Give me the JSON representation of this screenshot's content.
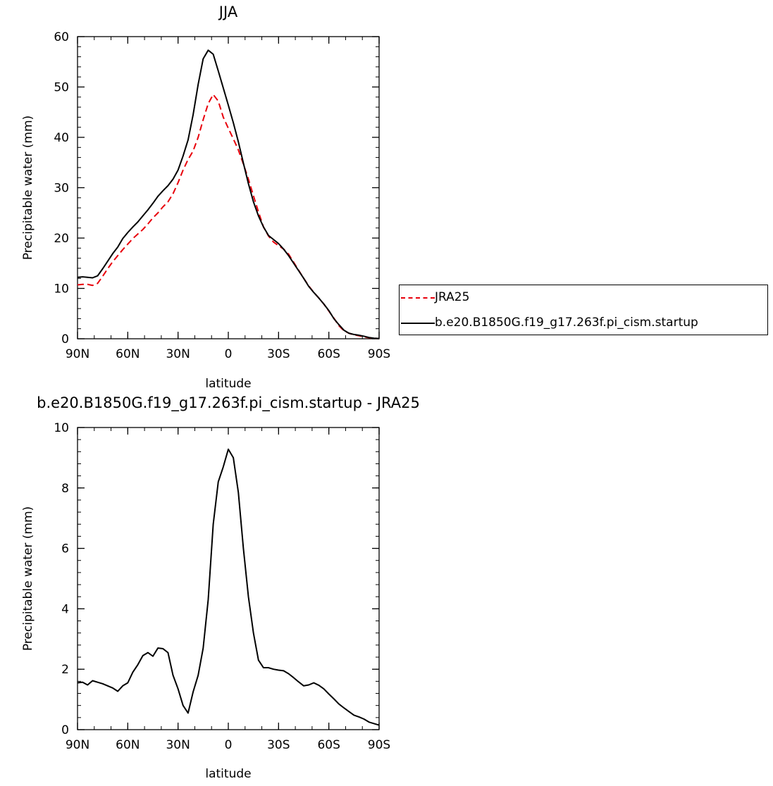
{
  "chart_data": [
    {
      "type": "line",
      "title": "JJA",
      "xlabel": "latitude",
      "ylabel": "Precipitable water (mm)",
      "xlim": [
        90,
        -90
      ],
      "ylim": [
        0,
        60
      ],
      "xticks": [
        90,
        60,
        30,
        0,
        -30,
        -60,
        -90
      ],
      "xtick_labels": [
        "90N",
        "60N",
        "30N",
        "0",
        "30S",
        "60S",
        "90S"
      ],
      "yticks": [
        0,
        10,
        20,
        30,
        40,
        50,
        60
      ],
      "ytick_labels": [
        "0",
        "10",
        "20",
        "30",
        "40",
        "50",
        "60"
      ],
      "legend": "right",
      "series": [
        {
          "name": "JRA25",
          "color": "#e8000b",
          "style": "dashed",
          "x": [
            90,
            87,
            84,
            81,
            78,
            75,
            72,
            69,
            66,
            63,
            60,
            57,
            54,
            51,
            48,
            45,
            42,
            39,
            36,
            33,
            30,
            27,
            24,
            21,
            18,
            15,
            12,
            9,
            6,
            3,
            0,
            -3,
            -6,
            -9,
            -12,
            -15,
            -18,
            -21,
            -24,
            -27,
            -30,
            -33,
            -36,
            -39,
            -42,
            -45,
            -48,
            -51,
            -54,
            -57,
            -60,
            -63,
            -66,
            -69,
            -72,
            -75,
            -78,
            -81,
            -84,
            -87,
            -90
          ],
          "y": [
            10.7,
            10.8,
            10.8,
            10.6,
            11,
            12.4,
            13.9,
            15.3,
            16.5,
            17.7,
            18.8,
            19.9,
            20.8,
            21.7,
            22.8,
            24,
            25,
            26.2,
            27.2,
            28.8,
            31,
            33.5,
            35.6,
            37.3,
            40,
            43.5,
            46.7,
            48.5,
            47.2,
            44,
            41.8,
            39.7,
            37.5,
            34.7,
            31.7,
            28.4,
            25.2,
            22.2,
            20.4,
            19.2,
            18.5,
            17.8,
            16.8,
            15.2,
            13.6,
            12,
            10.5,
            9.2,
            8.1,
            6.9,
            5.5,
            4.1,
            2.6,
            1.6,
            1.1,
            0.8,
            0.6,
            0.4,
            0.2,
            0.1,
            0.05
          ]
        },
        {
          "name": "b.e20.B1850G.f19_g17.263f.pi_cism.startup",
          "color": "#000000",
          "style": "solid",
          "x": [
            90,
            87,
            84,
            81,
            78,
            75,
            72,
            69,
            66,
            63,
            60,
            57,
            54,
            51,
            48,
            45,
            42,
            39,
            36,
            33,
            30,
            27,
            24,
            21,
            18,
            15,
            12,
            9,
            6,
            3,
            0,
            -3,
            -6,
            -9,
            -12,
            -15,
            -18,
            -21,
            -24,
            -27,
            -30,
            -33,
            -36,
            -39,
            -42,
            -45,
            -48,
            -51,
            -54,
            -57,
            -60,
            -63,
            -66,
            -69,
            -72,
            -75,
            -78,
            -81,
            -84,
            -87,
            -90
          ],
          "y": [
            12.2,
            12.3,
            12.2,
            12.1,
            12.5,
            13.9,
            15.4,
            16.9,
            18.2,
            19.9,
            21.1,
            22.2,
            23.2,
            24.4,
            25.6,
            26.9,
            28.3,
            29.4,
            30.4,
            31.7,
            33.5,
            36.3,
            39.5,
            44.5,
            50.5,
            55.6,
            57.3,
            56.5,
            53.2,
            49.8,
            46.4,
            42.9,
            39.1,
            34.9,
            30.8,
            27.2,
            24.4,
            22.2,
            20.5,
            19.7,
            18.9,
            17.8,
            16.5,
            15,
            13.5,
            12,
            10.4,
            9.2,
            8.1,
            6.9,
            5.6,
            4,
            2.8,
            1.7,
            1.1,
            0.85,
            0.7,
            0.5,
            0.25,
            0.1,
            0.05
          ]
        }
      ]
    },
    {
      "type": "line",
      "title": "b.e20.B1850G.f19_g17.263f.pi_cism.startup  -  JRA25",
      "xlabel": "latitude",
      "ylabel": "Precipitable water (mm)",
      "xlim": [
        90,
        -90
      ],
      "ylim": [
        0,
        10
      ],
      "xticks": [
        90,
        60,
        30,
        0,
        -30,
        -60,
        -90
      ],
      "xtick_labels": [
        "90N",
        "60N",
        "30N",
        "0",
        "30S",
        "60S",
        "90S"
      ],
      "yticks": [
        0,
        2,
        4,
        6,
        8,
        10
      ],
      "ytick_labels": [
        "0",
        "2",
        "4",
        "6",
        "8",
        "10"
      ],
      "series": [
        {
          "color": "#000000",
          "style": "solid",
          "x": [
            90,
            87,
            84,
            81,
            78,
            75,
            72,
            69,
            66,
            63,
            60,
            57,
            54,
            51,
            48,
            45,
            42,
            39,
            36,
            33,
            30,
            27,
            24,
            21,
            18,
            15,
            12,
            9,
            6,
            3,
            0,
            -3,
            -6,
            -9,
            -12,
            -15,
            -18,
            -21,
            -24,
            -27,
            -30,
            -33,
            -36,
            -39,
            -42,
            -45,
            -48,
            -51,
            -54,
            -57,
            -60,
            -63,
            -66,
            -69,
            -72,
            -75,
            -78,
            -81,
            -84,
            -87,
            -90
          ],
          "y": [
            1.55,
            1.57,
            1.48,
            1.62,
            1.57,
            1.52,
            1.45,
            1.38,
            1.27,
            1.45,
            1.55,
            1.9,
            2.15,
            2.45,
            2.55,
            2.43,
            2.7,
            2.68,
            2.55,
            1.8,
            1.35,
            0.8,
            0.55,
            1.25,
            1.8,
            2.7,
            4.3,
            6.8,
            8.2,
            8.7,
            9.28,
            9.0,
            7.85,
            6.0,
            4.4,
            3.2,
            2.3,
            2.05,
            2.05,
            2.0,
            1.97,
            1.95,
            1.85,
            1.72,
            1.58,
            1.45,
            1.48,
            1.55,
            1.47,
            1.35,
            1.18,
            1.02,
            0.85,
            0.72,
            0.6,
            0.48,
            0.42,
            0.35,
            0.25,
            0.2,
            0.15
          ]
        }
      ]
    }
  ]
}
